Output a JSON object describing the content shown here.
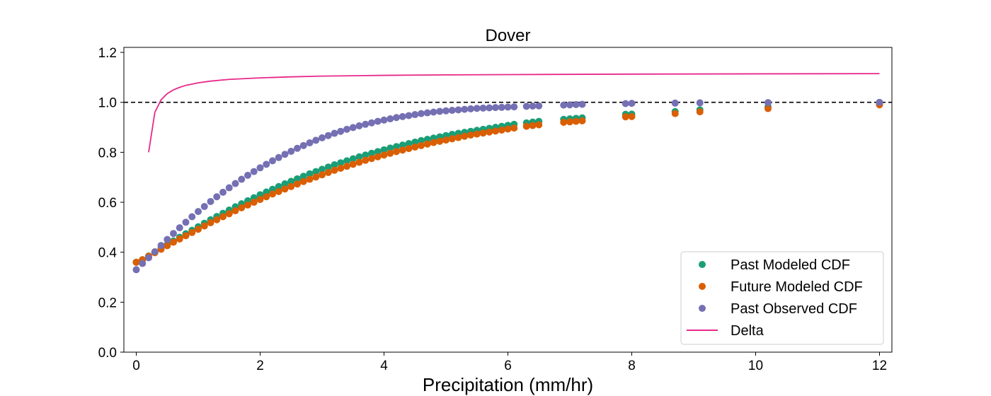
{
  "chart_data": {
    "type": "scatter",
    "title": "Dover",
    "xlabel": "Precipitation (mm/hr)",
    "ylabel": "",
    "xlim": [
      -0.2,
      12.2
    ],
    "ylim": [
      0.0,
      1.22
    ],
    "xticks": [
      "0",
      "2",
      "4",
      "6",
      "8",
      "10",
      "12"
    ],
    "yticks": [
      "0.0",
      "0.2",
      "0.4",
      "0.6",
      "0.8",
      "1.0",
      "1.2"
    ],
    "reference_line": {
      "y": 1.0,
      "style": "dashed",
      "color": "#000000"
    },
    "legend_position": "lower-right",
    "series": [
      {
        "name": "Past Modeled CDF",
        "kind": "points",
        "color": "#1b9e77",
        "x": [
          0,
          0.1,
          0.2,
          0.3,
          0.4,
          0.5,
          0.6,
          0.7,
          0.8,
          0.9,
          1.0,
          1.1,
          1.2,
          1.3,
          1.4,
          1.5,
          1.6,
          1.7,
          1.8,
          1.9,
          2.0,
          2.1,
          2.2,
          2.3,
          2.4,
          2.5,
          2.6,
          2.7,
          2.8,
          2.9,
          3.0,
          3.1,
          3.2,
          3.3,
          3.4,
          3.5,
          3.6,
          3.7,
          3.8,
          3.9,
          4.0,
          4.1,
          4.2,
          4.3,
          4.4,
          4.5,
          4.6,
          4.7,
          4.8,
          4.9,
          5.0,
          5.1,
          5.2,
          5.3,
          5.4,
          5.5,
          5.6,
          5.7,
          5.8,
          5.9,
          6.0,
          6.1,
          6.3,
          6.4,
          6.5,
          6.9,
          7.0,
          7.1,
          7.2,
          7.9,
          8.0,
          8.7,
          9.1,
          10.2,
          12.0
        ],
        "y": [
          0.36,
          0.37,
          0.385,
          0.4,
          0.415,
          0.43,
          0.445,
          0.46,
          0.474,
          0.488,
          0.502,
          0.516,
          0.53,
          0.543,
          0.556,
          0.569,
          0.582,
          0.594,
          0.606,
          0.618,
          0.63,
          0.641,
          0.652,
          0.663,
          0.674,
          0.684,
          0.694,
          0.704,
          0.714,
          0.723,
          0.732,
          0.741,
          0.75,
          0.758,
          0.766,
          0.774,
          0.782,
          0.789,
          0.796,
          0.803,
          0.81,
          0.817,
          0.823,
          0.829,
          0.835,
          0.841,
          0.847,
          0.852,
          0.857,
          0.862,
          0.867,
          0.872,
          0.876,
          0.88,
          0.884,
          0.888,
          0.892,
          0.896,
          0.9,
          0.904,
          0.908,
          0.912,
          0.918,
          0.921,
          0.924,
          0.932,
          0.934,
          0.936,
          0.938,
          0.952,
          0.953,
          0.963,
          0.97,
          0.982,
          0.995
        ]
      },
      {
        "name": "Future Modeled CDF",
        "kind": "points",
        "color": "#d95f02",
        "x": [
          0,
          0.1,
          0.2,
          0.3,
          0.4,
          0.5,
          0.6,
          0.7,
          0.8,
          0.9,
          1.0,
          1.1,
          1.2,
          1.3,
          1.4,
          1.5,
          1.6,
          1.7,
          1.8,
          1.9,
          2.0,
          2.1,
          2.2,
          2.3,
          2.4,
          2.5,
          2.6,
          2.7,
          2.8,
          2.9,
          3.0,
          3.1,
          3.2,
          3.3,
          3.4,
          3.5,
          3.6,
          3.7,
          3.8,
          3.9,
          4.0,
          4.1,
          4.2,
          4.3,
          4.4,
          4.5,
          4.6,
          4.7,
          4.8,
          4.9,
          5.0,
          5.1,
          5.2,
          5.3,
          5.4,
          5.5,
          5.6,
          5.7,
          5.8,
          5.9,
          6.0,
          6.1,
          6.3,
          6.4,
          6.5,
          6.9,
          7.0,
          7.1,
          7.2,
          7.9,
          8.0,
          8.7,
          9.1,
          10.2,
          12.0
        ],
        "y": [
          0.36,
          0.37,
          0.384,
          0.398,
          0.412,
          0.426,
          0.44,
          0.453,
          0.466,
          0.479,
          0.492,
          0.505,
          0.518,
          0.53,
          0.542,
          0.554,
          0.566,
          0.578,
          0.589,
          0.6,
          0.611,
          0.622,
          0.633,
          0.643,
          0.653,
          0.663,
          0.673,
          0.683,
          0.692,
          0.701,
          0.71,
          0.719,
          0.728,
          0.736,
          0.744,
          0.752,
          0.76,
          0.768,
          0.775,
          0.782,
          0.789,
          0.796,
          0.803,
          0.809,
          0.815,
          0.821,
          0.827,
          0.833,
          0.839,
          0.844,
          0.849,
          0.854,
          0.859,
          0.864,
          0.869,
          0.873,
          0.877,
          0.881,
          0.885,
          0.889,
          0.893,
          0.897,
          0.904,
          0.907,
          0.91,
          0.92,
          0.922,
          0.924,
          0.926,
          0.942,
          0.943,
          0.955,
          0.962,
          0.975,
          0.99
        ]
      },
      {
        "name": "Past Observed CDF",
        "kind": "points",
        "color": "#7570b3",
        "x": [
          0,
          0.1,
          0.2,
          0.3,
          0.4,
          0.5,
          0.6,
          0.7,
          0.8,
          0.9,
          1.0,
          1.1,
          1.2,
          1.3,
          1.4,
          1.5,
          1.6,
          1.7,
          1.8,
          1.9,
          2.0,
          2.1,
          2.2,
          2.3,
          2.4,
          2.5,
          2.6,
          2.7,
          2.8,
          2.9,
          3.0,
          3.1,
          3.2,
          3.3,
          3.4,
          3.5,
          3.6,
          3.7,
          3.8,
          3.9,
          4.0,
          4.1,
          4.2,
          4.3,
          4.4,
          4.5,
          4.6,
          4.7,
          4.8,
          4.9,
          5.0,
          5.1,
          5.2,
          5.3,
          5.4,
          5.5,
          5.6,
          5.7,
          5.8,
          5.9,
          6.0,
          6.1,
          6.3,
          6.4,
          6.5,
          6.9,
          7.0,
          7.1,
          7.2,
          7.9,
          8.0,
          8.7,
          9.1,
          10.2,
          12.0
        ],
        "y": [
          0.33,
          0.355,
          0.378,
          0.402,
          0.427,
          0.451,
          0.475,
          0.498,
          0.52,
          0.542,
          0.563,
          0.583,
          0.603,
          0.622,
          0.64,
          0.658,
          0.675,
          0.692,
          0.708,
          0.723,
          0.738,
          0.752,
          0.766,
          0.779,
          0.792,
          0.804,
          0.816,
          0.827,
          0.838,
          0.848,
          0.858,
          0.867,
          0.876,
          0.884,
          0.892,
          0.899,
          0.906,
          0.912,
          0.918,
          0.924,
          0.929,
          0.934,
          0.939,
          0.943,
          0.947,
          0.951,
          0.955,
          0.958,
          0.961,
          0.964,
          0.966,
          0.968,
          0.97,
          0.972,
          0.974,
          0.976,
          0.977,
          0.978,
          0.979,
          0.98,
          0.981,
          0.982,
          0.984,
          0.985,
          0.986,
          0.989,
          0.99,
          0.991,
          0.992,
          0.995,
          0.996,
          0.997,
          0.998,
          0.999,
          1.0
        ]
      },
      {
        "name": "Delta",
        "kind": "line",
        "color": "#e7298a",
        "x": [
          0.2,
          0.3,
          0.4,
          0.5,
          0.6,
          0.7,
          0.8,
          1.0,
          1.2,
          1.5,
          2.0,
          2.5,
          3.0,
          4.0,
          5.0,
          6.0,
          8.0,
          10.0,
          12.0
        ],
        "y": [
          0.8,
          0.96,
          1.01,
          1.035,
          1.05,
          1.06,
          1.068,
          1.078,
          1.085,
          1.092,
          1.098,
          1.102,
          1.105,
          1.108,
          1.11,
          1.111,
          1.113,
          1.114,
          1.115
        ]
      }
    ]
  }
}
